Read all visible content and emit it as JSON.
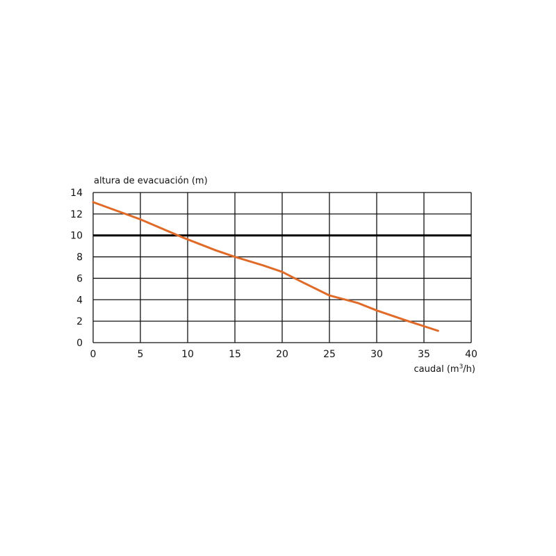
{
  "chart_data": {
    "type": "line",
    "ylabel": "altura de evacuación (m)",
    "xlabel_prefix": "caudal (m",
    "xlabel_sup": "3",
    "xlabel_suffix": "/h)",
    "xlim": [
      0,
      40
    ],
    "ylim": [
      0,
      14
    ],
    "xticks": [
      0,
      5,
      10,
      15,
      20,
      25,
      30,
      35,
      40
    ],
    "yticks": [
      0,
      2,
      4,
      6,
      8,
      10,
      12,
      14
    ],
    "grid": true,
    "reference_line": {
      "y": 10,
      "color": "#000000"
    },
    "series": [
      {
        "color": "#e06a28",
        "x": [
          0,
          5,
          9.5,
          13,
          15,
          18,
          20,
          22,
          25,
          28,
          30,
          33,
          36.5
        ],
        "y": [
          13.1,
          11.5,
          9.8,
          8.6,
          8.0,
          7.2,
          6.6,
          5.7,
          4.4,
          3.7,
          3.0,
          2.1,
          1.1
        ]
      }
    ]
  }
}
